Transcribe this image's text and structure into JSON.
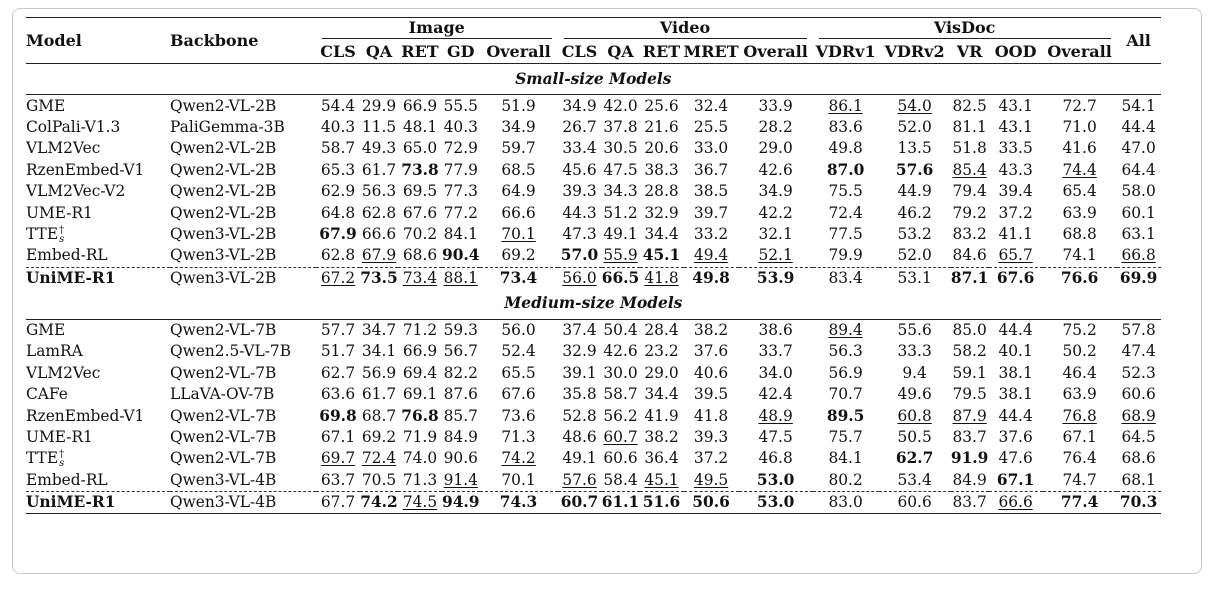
{
  "header": {
    "model": "Model",
    "backbone": "Backbone",
    "all": "All",
    "groups": [
      "Image",
      "Video",
      "VisDoc"
    ],
    "subcols": [
      "CLS",
      "QA",
      "RET",
      "GD",
      "Overall",
      "CLS",
      "QA",
      "RET",
      "MRET",
      "Overall",
      "VDRv1",
      "VDRv2",
      "VR",
      "OOD",
      "Overall"
    ]
  },
  "sections": [
    {
      "title": "Small-size Models",
      "rows": [
        {
          "model": "GME",
          "backbone": "Qwen2-VL-2B",
          "values": [
            "54.4",
            "29.9",
            "66.9",
            "55.5",
            "51.9",
            "34.9",
            "42.0",
            "25.6",
            "32.4",
            "33.9",
            "86.1",
            "54.0",
            "82.5",
            "43.1",
            "72.7",
            "54.1"
          ],
          "bold": [],
          "underline": [
            10,
            11
          ]
        },
        {
          "model": "ColPali-V1.3",
          "backbone": "PaliGemma-3B",
          "values": [
            "40.3",
            "11.5",
            "48.1",
            "40.3",
            "34.9",
            "26.7",
            "37.8",
            "21.6",
            "25.5",
            "28.2",
            "83.6",
            "52.0",
            "81.1",
            "43.1",
            "71.0",
            "44.4"
          ],
          "bold": [],
          "underline": []
        },
        {
          "model": "VLM2Vec",
          "backbone": "Qwen2-VL-2B",
          "values": [
            "58.7",
            "49.3",
            "65.0",
            "72.9",
            "59.7",
            "33.4",
            "30.5",
            "20.6",
            "33.0",
            "29.0",
            "49.8",
            "13.5",
            "51.8",
            "33.5",
            "41.6",
            "47.0"
          ],
          "bold": [],
          "underline": []
        },
        {
          "model": "RzenEmbed-V1",
          "backbone": "Qwen2-VL-2B",
          "values": [
            "65.3",
            "61.7",
            "73.8",
            "77.9",
            "68.5",
            "45.6",
            "47.5",
            "38.3",
            "36.7",
            "42.6",
            "87.0",
            "57.6",
            "85.4",
            "43.3",
            "74.4",
            "64.4"
          ],
          "bold": [
            2,
            10,
            11
          ],
          "underline": [
            12,
            14
          ]
        },
        {
          "model": "VLM2Vec-V2",
          "backbone": "Qwen2-VL-2B",
          "values": [
            "62.9",
            "56.3",
            "69.5",
            "77.3",
            "64.9",
            "39.3",
            "34.3",
            "28.8",
            "38.5",
            "34.9",
            "75.5",
            "44.9",
            "79.4",
            "39.4",
            "65.4",
            "58.0"
          ],
          "bold": [],
          "underline": []
        },
        {
          "model": "UME-R1",
          "backbone": "Qwen2-VL-2B",
          "values": [
            "64.8",
            "62.8",
            "67.6",
            "77.2",
            "66.6",
            "44.3",
            "51.2",
            "32.9",
            "39.7",
            "42.2",
            "72.4",
            "46.2",
            "79.2",
            "37.2",
            "63.9",
            "60.1"
          ],
          "bold": [],
          "underline": []
        },
        {
          "model": "TTE",
          "model_sup": "†",
          "model_sub": "s",
          "backbone": "Qwen3-VL-2B",
          "values": [
            "67.9",
            "66.6",
            "70.2",
            "84.1",
            "70.1",
            "47.3",
            "49.1",
            "34.4",
            "33.2",
            "32.1",
            "77.5",
            "53.2",
            "83.2",
            "41.1",
            "68.8",
            "63.1"
          ],
          "bold": [
            0
          ],
          "underline": [
            4
          ]
        },
        {
          "model": "Embed-RL",
          "backbone": "Qwen3-VL-2B",
          "values": [
            "62.8",
            "67.9",
            "68.6",
            "90.4",
            "69.2",
            "57.0",
            "55.9",
            "45.1",
            "49.4",
            "52.1",
            "79.9",
            "52.0",
            "84.6",
            "65.7",
            "74.1",
            "66.8"
          ],
          "bold": [
            3,
            5,
            7
          ],
          "underline": [
            1,
            6,
            8,
            9,
            13,
            15
          ]
        },
        {
          "model": "UniME-R1",
          "backbone": "Qwen3-VL-2B",
          "values": [
            "67.2",
            "73.5",
            "73.4",
            "88.1",
            "73.4",
            "56.0",
            "66.5",
            "41.8",
            "49.8",
            "53.9",
            "83.4",
            "53.1",
            "87.1",
            "67.6",
            "76.6",
            "69.9"
          ],
          "bold": [
            1,
            4,
            6,
            8,
            9,
            12,
            13,
            14,
            15
          ],
          "underline": [
            0,
            2,
            3,
            5,
            7
          ],
          "highlight": true
        }
      ]
    },
    {
      "title": "Medium-size Models",
      "rows": [
        {
          "model": "GME",
          "backbone": "Qwen2-VL-7B",
          "values": [
            "57.7",
            "34.7",
            "71.2",
            "59.3",
            "56.0",
            "37.4",
            "50.4",
            "28.4",
            "38.2",
            "38.6",
            "89.4",
            "55.6",
            "85.0",
            "44.4",
            "75.2",
            "57.8"
          ],
          "bold": [],
          "underline": [
            10
          ]
        },
        {
          "model": "LamRA",
          "backbone": "Qwen2.5-VL-7B",
          "values": [
            "51.7",
            "34.1",
            "66.9",
            "56.7",
            "52.4",
            "32.9",
            "42.6",
            "23.2",
            "37.6",
            "33.7",
            "56.3",
            "33.3",
            "58.2",
            "40.1",
            "50.2",
            "47.4"
          ],
          "bold": [],
          "underline": []
        },
        {
          "model": "VLM2Vec",
          "backbone": "Qwen2-VL-7B",
          "values": [
            "62.7",
            "56.9",
            "69.4",
            "82.2",
            "65.5",
            "39.1",
            "30.0",
            "29.0",
            "40.6",
            "34.0",
            "56.9",
            "9.4",
            "59.1",
            "38.1",
            "46.4",
            "52.3"
          ],
          "bold": [],
          "underline": []
        },
        {
          "model": "CAFe",
          "backbone": "LLaVA-OV-7B",
          "values": [
            "63.6",
            "61.7",
            "69.1",
            "87.6",
            "67.6",
            "35.8",
            "58.7",
            "34.4",
            "39.5",
            "42.4",
            "70.7",
            "49.6",
            "79.5",
            "38.1",
            "63.9",
            "60.6"
          ],
          "bold": [],
          "underline": []
        },
        {
          "model": "RzenEmbed-V1",
          "backbone": "Qwen2-VL-7B",
          "values": [
            "69.8",
            "68.7",
            "76.8",
            "85.7",
            "73.6",
            "52.8",
            "56.2",
            "41.9",
            "41.8",
            "48.9",
            "89.5",
            "60.8",
            "87.9",
            "44.4",
            "76.8",
            "68.9"
          ],
          "bold": [
            0,
            2,
            10
          ],
          "underline": [
            9,
            11,
            12,
            14,
            15
          ]
        },
        {
          "model": "UME-R1",
          "backbone": "Qwen2-VL-7B",
          "values": [
            "67.1",
            "69.2",
            "71.9",
            "84.9",
            "71.3",
            "48.6",
            "60.7",
            "38.2",
            "39.3",
            "47.5",
            "75.7",
            "50.5",
            "83.7",
            "37.6",
            "67.1",
            "64.5"
          ],
          "bold": [],
          "underline": [
            6
          ]
        },
        {
          "model": "TTE",
          "model_sup": "†",
          "model_sub": "s",
          "backbone": "Qwen2-VL-7B",
          "values": [
            "69.7",
            "72.4",
            "74.0",
            "90.6",
            "74.2",
            "49.1",
            "60.6",
            "36.4",
            "37.2",
            "46.8",
            "84.1",
            "62.7",
            "91.9",
            "47.6",
            "76.4",
            "68.6"
          ],
          "bold": [
            11,
            12
          ],
          "underline": [
            0,
            1,
            4
          ]
        },
        {
          "model": "Embed-RL",
          "backbone": "Qwen3-VL-4B",
          "values": [
            "63.7",
            "70.5",
            "71.3",
            "91.4",
            "70.1",
            "57.6",
            "58.4",
            "45.1",
            "49.5",
            "53.0",
            "80.2",
            "53.4",
            "84.9",
            "67.1",
            "74.7",
            "68.1"
          ],
          "bold": [
            9,
            13
          ],
          "underline": [
            3,
            5,
            7,
            8
          ]
        },
        {
          "model": "UniME-R1",
          "backbone": "Qwen3-VL-4B",
          "values": [
            "67.7",
            "74.2",
            "74.5",
            "94.9",
            "74.3",
            "60.7",
            "61.1",
            "51.6",
            "50.6",
            "53.0",
            "83.0",
            "60.6",
            "83.7",
            "66.6",
            "77.4",
            "70.3"
          ],
          "bold": [
            1,
            3,
            4,
            5,
            6,
            7,
            8,
            9,
            14,
            15
          ],
          "underline": [
            2,
            13
          ],
          "highlight": true
        }
      ]
    }
  ]
}
